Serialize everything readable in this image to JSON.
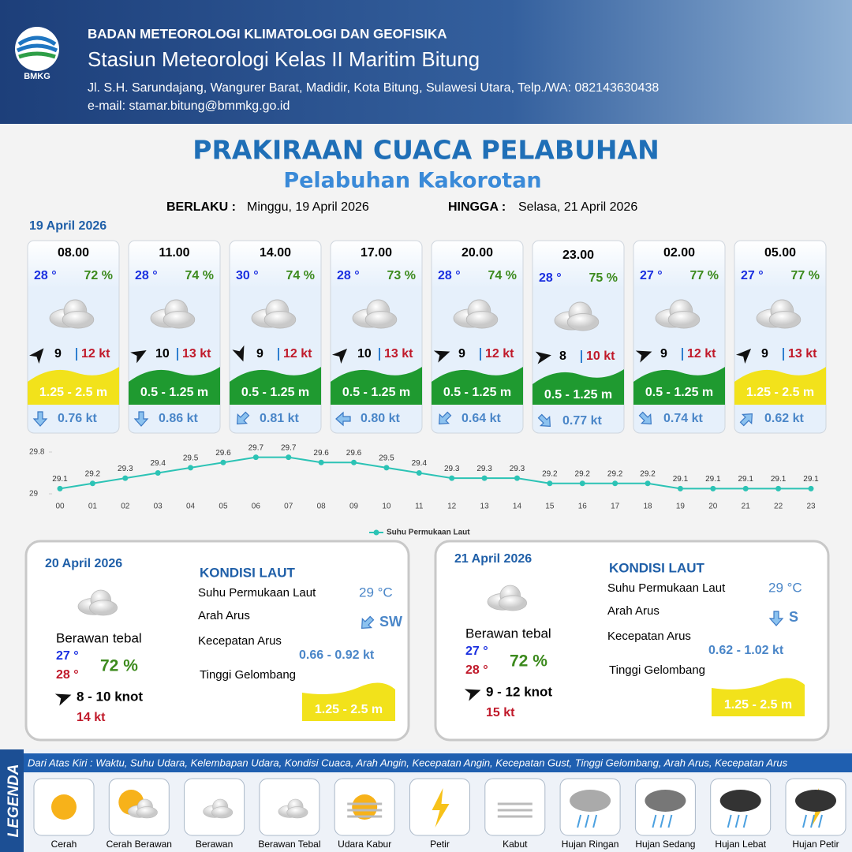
{
  "header": {
    "logo": "BMKG",
    "org": "BADAN METEOROLOGI KLIMATOLOGI DAN GEOFISIKA",
    "station": "Stasiun Meteorologi Kelas II Maritim Bitung",
    "address": "Jl. S.H. Sarundajang, Wangurer Barat, Madidir, Kota Bitung, Sulawesi Utara, Telp./WA: 082143630438",
    "email": "e-mail: stamar.bitung@bmmkg.go.id"
  },
  "title": "PRAKIRAAN CUACA PELABUHAN",
  "subtitle": "Pelabuhan Kakorotan",
  "validity": {
    "from_label": "BERLAKU :",
    "from": "Minggu, 19 April 2026",
    "to_label": "HINGGA :",
    "to": "Selasa, 21 April 2026"
  },
  "day1": {
    "date": "19 April 2026",
    "cards": [
      {
        "time": "08.00",
        "temp": "28 °",
        "humidity": "72 %",
        "wind": "9",
        "gust": "12 kt",
        "wave": "1.25 - 2.5 m",
        "current": "0.76 kt"
      },
      {
        "time": "11.00",
        "temp": "28 °",
        "humidity": "74 %",
        "wind": "10",
        "gust": "13 kt",
        "wave": "0.5 - 1.25 m",
        "current": "0.86 kt"
      },
      {
        "time": "14.00",
        "temp": "30 °",
        "humidity": "74 %",
        "wind": "9",
        "gust": "12 kt",
        "wave": "0.5 - 1.25 m",
        "current": "0.81 kt"
      },
      {
        "time": "17.00",
        "temp": "28 °",
        "humidity": "73 %",
        "wind": "10",
        "gust": "13 kt",
        "wave": "0.5 - 1.25 m",
        "current": "0.80 kt"
      },
      {
        "time": "20.00",
        "temp": "28 °",
        "humidity": "74 %",
        "wind": "9",
        "gust": "12 kt",
        "wave": "0.5 - 1.25 m",
        "current": "0.64 kt"
      },
      {
        "time": "23.00",
        "temp": "28 °",
        "humidity": "75 %",
        "wind": "8",
        "gust": "10 kt",
        "wave": "0.5 - 1.25 m",
        "current": "0.77 kt"
      },
      {
        "time": "02.00",
        "temp": "27 °",
        "humidity": "77 %",
        "wind": "9",
        "gust": "12 kt",
        "wave": "0.5 - 1.25 m",
        "current": "0.74 kt"
      },
      {
        "time": "05.00",
        "temp": "27 °",
        "humidity": "77 %",
        "wind": "9",
        "gust": "13 kt",
        "wave": "1.25 - 2.5 m",
        "current": "0.62 kt"
      }
    ]
  },
  "chart_data": {
    "type": "line",
    "categories": [
      "00",
      "01",
      "02",
      "03",
      "04",
      "05",
      "06",
      "07",
      "08",
      "09",
      "10",
      "11",
      "12",
      "13",
      "14",
      "15",
      "16",
      "17",
      "18",
      "19",
      "20",
      "21",
      "22",
      "23"
    ],
    "series": [
      {
        "name": "Suhu Permukaan Laut",
        "color": "#2cc3b5",
        "values": [
          29.1,
          29.2,
          29.3,
          29.4,
          29.5,
          29.6,
          29.7,
          29.7,
          29.6,
          29.6,
          29.5,
          29.4,
          29.3,
          29.3,
          29.3,
          29.2,
          29.2,
          29.2,
          29.2,
          29.1,
          29.1,
          29.1,
          29.1,
          29.1
        ]
      }
    ],
    "ylim": [
      29,
      29.8
    ],
    "yticks": [
      29,
      29.8
    ]
  },
  "days": [
    {
      "date": "20 April 2026",
      "condition": "Berawan tebal",
      "tmin": "27 °",
      "tmax": "28 °",
      "humidity": "72 %",
      "wind": "8  - 10 knot",
      "gust": "14 kt",
      "sea_title": "KONDISI LAUT",
      "sst_label": "Suhu Permukaan Laut",
      "sst": "29 °C",
      "dir_label": "Arah Arus",
      "dir": "SW",
      "speed_label": "Kecepatan Arus",
      "speed": "0.66 - 0.92 kt",
      "wave_label": "Tinggi Gelombang",
      "wave": "1.25 - 2.5 m"
    },
    {
      "date": "21 April 2026",
      "condition": "Berawan tebal",
      "tmin": "27 °",
      "tmax": "28 °",
      "humidity": "72 %",
      "wind": "9  - 12 knot",
      "gust": "15 kt",
      "sea_title": "KONDISI LAUT",
      "sst_label": "Suhu Permukaan Laut",
      "sst": "29 °C",
      "dir_label": "Arah Arus",
      "dir": "S",
      "speed_label": "Kecepatan Arus",
      "speed": "0.62 - 1.02 kt",
      "wave_label": "Tinggi Gelombang",
      "wave": "1.25 - 2.5 m"
    }
  ],
  "legend": {
    "title": "LEGENDA",
    "description": "Dari Atas Kiri : Waktu, Suhu Udara, Kelembapan Udara, Kondisi Cuaca, Arah Angin, Kecepatan Angin, Kecepatan Gust, Tinggi Gelombang, Arah Arus, Kecepatan Arus",
    "items": [
      "Cerah",
      "Cerah Berawan",
      "Berawan",
      "Berawan Tebal",
      "Udara Kabur",
      "Petir",
      "Kabut",
      "Hujan Ringan",
      "Hujan Sedang",
      "Hujan Lebat",
      "Hujan Petir"
    ]
  }
}
